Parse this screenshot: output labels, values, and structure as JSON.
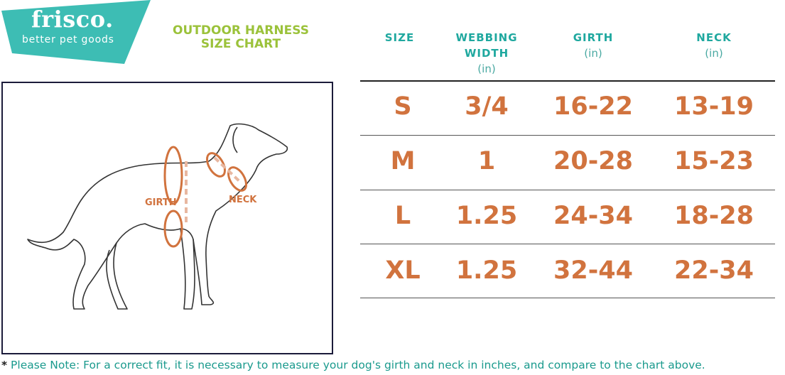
{
  "brand": {
    "name": "frisco.",
    "tagline": "better pet goods",
    "color": "#3dbdb4"
  },
  "title": {
    "line1": "OUTDOOR HARNESS",
    "line2": "SIZE CHART",
    "color": "#9bc23a"
  },
  "table": {
    "headers": [
      {
        "label": "SIZE",
        "unit": ""
      },
      {
        "label": "WEBBING WIDTH",
        "unit": "(in)"
      },
      {
        "label": "GIRTH",
        "unit": "(in)"
      },
      {
        "label": "NECK",
        "unit": "(in)"
      }
    ],
    "rows": [
      [
        "S",
        "3/4",
        "16-22",
        "13-19"
      ],
      [
        "M",
        "1",
        "20-28",
        "15-23"
      ],
      [
        "L",
        "1.25",
        "24-34",
        "18-28"
      ],
      [
        "XL",
        "1.25",
        "32-44",
        "22-34"
      ]
    ],
    "value_color": "#d1733e"
  },
  "diagram": {
    "girth_label": "GIRTH",
    "neck_label": "NECK",
    "icon": "dog-outline"
  },
  "note": {
    "star": "*",
    "text": "Please Note: For a correct fit, it is necessary to measure your dog's girth and neck in inches, and compare to the chart above."
  }
}
